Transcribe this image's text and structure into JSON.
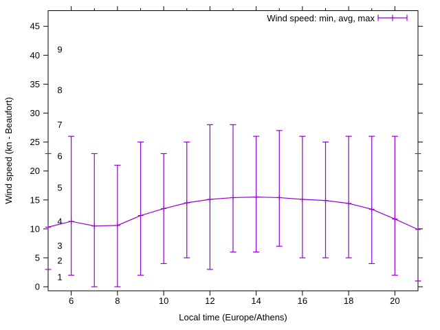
{
  "chart_data": {
    "type": "line",
    "style": "line-with-yerrorbars",
    "title": "",
    "legend": "Wind speed: min, avg, max",
    "legend_position": "top-right-inside",
    "xlabel": "Local time (Europe/Athens)",
    "ylabel": "Wind speed (kn - Beaufort)",
    "x_range": [
      5,
      21
    ],
    "y_range": [
      -0.7,
      47.7
    ],
    "x_major_ticks": [
      6,
      8,
      10,
      12,
      14,
      16,
      18,
      20
    ],
    "x_minor_ticks_top": [
      7,
      9,
      11,
      13,
      15,
      17,
      19
    ],
    "y_ticks": [
      0,
      5,
      10,
      15,
      20,
      25,
      30,
      35,
      40,
      45
    ],
    "grid": false,
    "x": [
      5,
      6,
      7,
      8,
      9,
      10,
      11,
      12,
      13,
      14,
      15,
      16,
      17,
      18,
      19,
      20,
      21
    ],
    "series": [
      {
        "name": "min",
        "values": [
          3,
          2,
          0,
          0,
          2,
          4,
          5,
          3,
          6,
          6,
          7,
          5,
          5,
          5,
          4,
          2,
          1
        ]
      },
      {
        "name": "avg",
        "values": [
          10.3,
          11.3,
          10.5,
          10.6,
          12.3,
          13.5,
          14.5,
          15.1,
          15.4,
          15.5,
          15.4,
          15.1,
          14.9,
          14.4,
          13.4,
          11.7,
          9.9
        ]
      },
      {
        "name": "max",
        "values": [
          23,
          26,
          23,
          21,
          25,
          23,
          25,
          28,
          28,
          26,
          27,
          26,
          25,
          26,
          26,
          26,
          23
        ]
      }
    ],
    "beaufort_scale_labels": [
      {
        "label": "1",
        "kn": 1.7
      },
      {
        "label": "2",
        "kn": 4.5
      },
      {
        "label": "3",
        "kn": 7.1
      },
      {
        "label": "4",
        "kn": 11.3
      },
      {
        "label": "5",
        "kn": 17.1
      },
      {
        "label": "6",
        "kn": 22.6
      },
      {
        "label": "7",
        "kn": 28.0
      },
      {
        "label": "8",
        "kn": 34.0
      },
      {
        "label": "9",
        "kn": 41.0
      }
    ],
    "colors": {
      "series": "#9400d3",
      "axis": "#000000",
      "text": "#000000",
      "background": "#ffffff"
    }
  }
}
